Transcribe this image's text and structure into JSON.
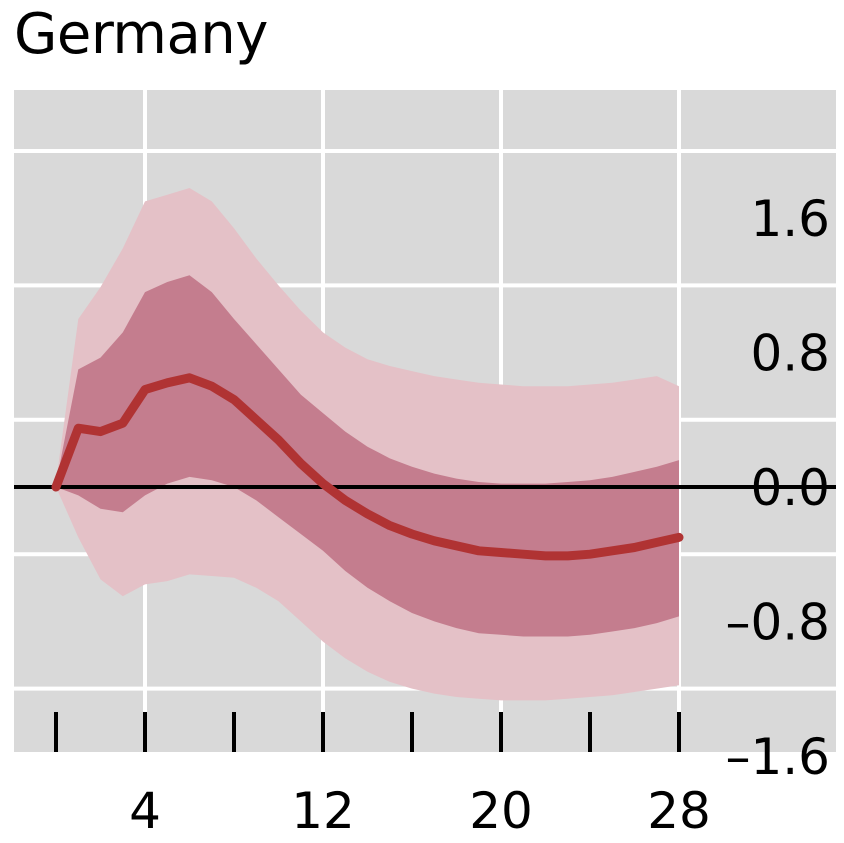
{
  "chart_data": {
    "type": "area",
    "title": "Germany",
    "xlabel": "",
    "ylabel": "",
    "xlim": [
      0,
      32
    ],
    "ylim": [
      -1.6,
      2.4
    ],
    "x_ticks": [
      4,
      12,
      20,
      28
    ],
    "x_tick_labels": [
      "4",
      "12",
      "20",
      "28"
    ],
    "y_ticks": [
      1.6,
      0.8,
      0.0,
      -0.8,
      -1.6
    ],
    "y_tick_labels": [
      "1.6",
      "0.8",
      "0.0",
      "–0.8",
      "–1.6"
    ],
    "grid": true,
    "zero_line": true,
    "x": [
      0,
      1,
      2,
      3,
      4,
      5,
      6,
      7,
      8,
      9,
      10,
      11,
      12,
      13,
      14,
      15,
      16,
      17,
      18,
      19,
      20,
      21,
      22,
      23,
      24,
      25,
      26,
      27,
      28
    ],
    "median": [
      0.0,
      0.35,
      0.33,
      0.38,
      0.58,
      0.62,
      0.65,
      0.6,
      0.52,
      0.4,
      0.28,
      0.14,
      0.02,
      -0.08,
      -0.16,
      -0.23,
      -0.28,
      -0.32,
      -0.35,
      -0.38,
      -0.39,
      -0.4,
      -0.41,
      -0.41,
      -0.4,
      -0.38,
      -0.36,
      -0.33,
      -0.3
    ],
    "band_inner": {
      "upper": [
        0.02,
        0.7,
        0.77,
        0.92,
        1.16,
        1.22,
        1.26,
        1.16,
        1.0,
        0.85,
        0.7,
        0.55,
        0.44,
        0.33,
        0.24,
        0.17,
        0.12,
        0.08,
        0.05,
        0.03,
        0.02,
        0.02,
        0.02,
        0.03,
        0.04,
        0.06,
        0.09,
        0.12,
        0.16
      ],
      "lower": [
        0.0,
        -0.05,
        -0.13,
        -0.15,
        -0.05,
        0.02,
        0.06,
        0.04,
        0.0,
        -0.08,
        -0.18,
        -0.28,
        -0.38,
        -0.5,
        -0.6,
        -0.68,
        -0.75,
        -0.8,
        -0.84,
        -0.87,
        -0.88,
        -0.89,
        -0.89,
        -0.89,
        -0.88,
        -0.86,
        -0.84,
        -0.81,
        -0.77
      ]
    },
    "band_outer": {
      "upper": [
        0.03,
        1.0,
        1.19,
        1.42,
        1.7,
        1.74,
        1.78,
        1.7,
        1.54,
        1.36,
        1.2,
        1.05,
        0.92,
        0.83,
        0.76,
        0.72,
        0.69,
        0.66,
        0.64,
        0.62,
        0.61,
        0.6,
        0.6,
        0.6,
        0.61,
        0.62,
        0.64,
        0.66,
        0.6
      ],
      "lower": [
        0.0,
        -0.3,
        -0.55,
        -0.65,
        -0.58,
        -0.56,
        -0.52,
        -0.53,
        -0.54,
        -0.6,
        -0.68,
        -0.8,
        -0.92,
        -1.02,
        -1.1,
        -1.16,
        -1.2,
        -1.23,
        -1.25,
        -1.26,
        -1.27,
        -1.27,
        -1.27,
        -1.26,
        -1.25,
        -1.24,
        -1.22,
        -1.2,
        -1.18
      ]
    },
    "colors": {
      "panel_bg": "#d9d9d9",
      "grid": "#ffffff",
      "outer_band": "#e4c1c7",
      "inner_band": "#c47d8e",
      "median_line": "#b03333",
      "zero_line": "#000000"
    }
  }
}
